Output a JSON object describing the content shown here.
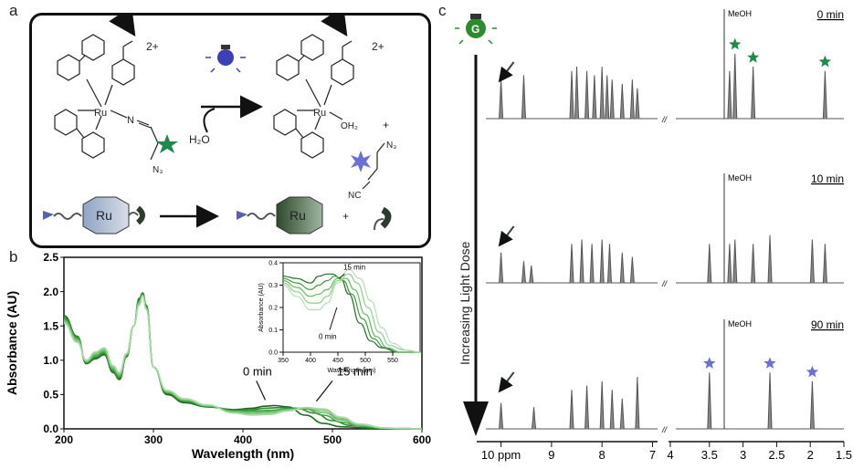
{
  "panel_labels": {
    "a": "a",
    "b": "b",
    "c": "c"
  },
  "scheme": {
    "metal": "Ru",
    "charge": "2+",
    "water": "H₂O",
    "aqua_ligand": "OH₂",
    "nitrogen": "N",
    "azide": "N₃",
    "nitrile": "NC",
    "plus": "+",
    "cartoon_label": "Ru",
    "colors": {
      "green_star": "#1f8a4c",
      "blue_star": "#6b6fd6",
      "bulb": "#3b3fb8"
    }
  },
  "chart_data": [
    {
      "type": "line",
      "xlabel": "Wavelength (nm)",
      "ylabel": "Absorbance (AU)",
      "xlim": [
        200,
        600
      ],
      "ylim": [
        0,
        2.5
      ],
      "x_ticks": [
        "200",
        "300",
        "400",
        "500",
        "600"
      ],
      "y_ticks": [
        "0.0",
        "0.5",
        "1.0",
        "1.5",
        "2.0",
        "2.5"
      ],
      "annotations": [
        "0 min",
        "15 min"
      ],
      "grid": false,
      "series": [
        {
          "x": [
            200,
            215,
            225,
            235,
            245,
            255,
            262,
            270,
            278,
            284,
            288,
            292,
            300,
            315,
            335,
            360,
            390,
            410,
            425,
            435,
            450,
            470,
            490,
            510,
            540,
            600
          ],
          "y": [
            1.65,
            1.35,
            0.95,
            1.02,
            1.08,
            0.82,
            0.72,
            1.05,
            1.5,
            1.9,
            1.98,
            1.8,
            0.9,
            0.5,
            0.38,
            0.32,
            0.28,
            0.3,
            0.33,
            0.34,
            0.32,
            0.2,
            0.08,
            0.03,
            0.01,
            0.0
          ],
          "color": "#1e6b1e"
        },
        {
          "x": [
            200,
            215,
            225,
            235,
            245,
            255,
            262,
            270,
            278,
            284,
            288,
            292,
            300,
            315,
            335,
            360,
            390,
            410,
            425,
            440,
            460,
            480,
            500,
            520,
            550,
            600
          ],
          "y": [
            1.62,
            1.34,
            0.96,
            1.04,
            1.1,
            0.84,
            0.74,
            1.06,
            1.5,
            1.88,
            1.97,
            1.78,
            0.9,
            0.52,
            0.4,
            0.33,
            0.27,
            0.28,
            0.3,
            0.31,
            0.3,
            0.23,
            0.12,
            0.05,
            0.01,
            0.0
          ],
          "color": "#2f8a2f"
        },
        {
          "x": [
            200,
            215,
            225,
            235,
            245,
            255,
            262,
            270,
            278,
            284,
            288,
            292,
            300,
            315,
            335,
            360,
            390,
            410,
            430,
            450,
            470,
            490,
            510,
            530,
            560,
            600
          ],
          "y": [
            1.6,
            1.32,
            0.97,
            1.06,
            1.12,
            0.86,
            0.76,
            1.07,
            1.5,
            1.86,
            1.96,
            1.77,
            0.9,
            0.53,
            0.41,
            0.33,
            0.26,
            0.26,
            0.27,
            0.29,
            0.29,
            0.2,
            0.1,
            0.04,
            0.01,
            0.0
          ],
          "color": "#47a347"
        },
        {
          "x": [
            200,
            215,
            225,
            235,
            245,
            255,
            262,
            270,
            278,
            284,
            288,
            292,
            300,
            315,
            335,
            360,
            390,
            410,
            430,
            450,
            470,
            490,
            510,
            530,
            560,
            600
          ],
          "y": [
            1.58,
            1.3,
            0.98,
            1.08,
            1.14,
            0.88,
            0.78,
            1.08,
            1.5,
            1.84,
            1.95,
            1.76,
            0.9,
            0.54,
            0.42,
            0.34,
            0.25,
            0.24,
            0.25,
            0.28,
            0.3,
            0.24,
            0.13,
            0.05,
            0.01,
            0.0
          ],
          "color": "#64b864"
        },
        {
          "x": [
            200,
            215,
            225,
            235,
            245,
            255,
            262,
            270,
            278,
            284,
            288,
            292,
            300,
            315,
            335,
            360,
            390,
            410,
            430,
            450,
            470,
            490,
            510,
            530,
            560,
            600
          ],
          "y": [
            1.56,
            1.28,
            0.99,
            1.1,
            1.16,
            0.9,
            0.8,
            1.09,
            1.5,
            1.82,
            1.94,
            1.75,
            0.9,
            0.55,
            0.43,
            0.34,
            0.24,
            0.22,
            0.23,
            0.27,
            0.31,
            0.27,
            0.15,
            0.06,
            0.01,
            0.0
          ],
          "color": "#86c986"
        },
        {
          "x": [
            200,
            215,
            225,
            235,
            245,
            255,
            262,
            270,
            278,
            284,
            288,
            292,
            300,
            315,
            335,
            360,
            390,
            410,
            430,
            450,
            470,
            490,
            510,
            530,
            560,
            600
          ],
          "y": [
            1.54,
            1.26,
            1.0,
            1.12,
            1.18,
            0.92,
            0.82,
            1.1,
            1.5,
            1.8,
            1.93,
            1.74,
            0.9,
            0.56,
            0.44,
            0.35,
            0.23,
            0.2,
            0.21,
            0.26,
            0.31,
            0.29,
            0.17,
            0.07,
            0.01,
            0.0
          ],
          "color": "#a8d9a8"
        }
      ]
    },
    {
      "type": "line",
      "xlabel": "Wavelength (nm)",
      "ylabel": "Absorbance (AU)",
      "xlim": [
        350,
        600
      ],
      "ylim": [
        0,
        0.4
      ],
      "x_ticks": [
        "350",
        "400",
        "450",
        "500",
        "550"
      ],
      "y_ticks": [
        "0.0",
        "0.1",
        "0.2",
        "0.3",
        "0.4"
      ],
      "annotations": [
        "0 min",
        "15 min"
      ],
      "grid": false,
      "series": [
        {
          "x": [
            350,
            375,
            400,
            415,
            430,
            440,
            455,
            470,
            490,
            510,
            530,
            560,
            600
          ],
          "y": [
            0.34,
            0.33,
            0.31,
            0.34,
            0.35,
            0.35,
            0.33,
            0.26,
            0.13,
            0.05,
            0.02,
            0.0,
            0.0
          ],
          "color": "#1e6b1e"
        },
        {
          "x": [
            350,
            375,
            400,
            415,
            430,
            445,
            460,
            475,
            495,
            515,
            535,
            560,
            600
          ],
          "y": [
            0.33,
            0.31,
            0.28,
            0.3,
            0.32,
            0.34,
            0.32,
            0.26,
            0.15,
            0.06,
            0.02,
            0.0,
            0.0
          ],
          "color": "#3c9a3c"
        },
        {
          "x": [
            350,
            375,
            400,
            415,
            430,
            450,
            465,
            480,
            500,
            520,
            540,
            565,
            600
          ],
          "y": [
            0.32,
            0.29,
            0.25,
            0.26,
            0.28,
            0.33,
            0.33,
            0.28,
            0.17,
            0.07,
            0.02,
            0.0,
            0.0
          ],
          "color": "#64b864"
        },
        {
          "x": [
            350,
            375,
            400,
            415,
            430,
            450,
            470,
            485,
            505,
            525,
            545,
            570,
            600
          ],
          "y": [
            0.31,
            0.27,
            0.22,
            0.22,
            0.25,
            0.32,
            0.35,
            0.31,
            0.2,
            0.09,
            0.03,
            0.01,
            0.0
          ],
          "color": "#8fcd8f"
        },
        {
          "x": [
            350,
            375,
            400,
            415,
            430,
            450,
            470,
            490,
            510,
            530,
            550,
            575,
            600
          ],
          "y": [
            0.3,
            0.25,
            0.19,
            0.19,
            0.22,
            0.31,
            0.37,
            0.33,
            0.23,
            0.11,
            0.04,
            0.01,
            0.0
          ],
          "color": "#b5deb5"
        }
      ]
    },
    {
      "type": "line",
      "xlabel": "",
      "ylabel": "",
      "x_ticks": [
        "10 ppm",
        "9",
        "8",
        "7",
        "4",
        "3.5",
        "3",
        "2.5",
        "2",
        "1.5"
      ],
      "axis_break": "//",
      "solvent_label": "MeOH",
      "traces": [
        {
          "time": "0 min",
          "low_peaks": [
            [
              10.0,
              0.45
            ],
            [
              9.55,
              0.5
            ],
            [
              8.6,
              0.55
            ],
            [
              8.5,
              0.6
            ],
            [
              8.3,
              0.55
            ],
            [
              8.15,
              0.5
            ],
            [
              8.0,
              0.6
            ],
            [
              7.9,
              0.5
            ],
            [
              7.8,
              0.45
            ],
            [
              7.6,
              0.4
            ],
            [
              7.4,
              0.45
            ],
            [
              7.3,
              0.35
            ]
          ],
          "high_peaks": [
            [
              3.28,
              1.0
            ],
            [
              3.2,
              0.55
            ],
            [
              3.12,
              0.75
            ],
            [
              2.85,
              0.6
            ],
            [
              1.78,
              0.55
            ]
          ],
          "star_ppm": [
            3.12,
            2.85,
            1.78
          ],
          "star_color": "#1f8a4c"
        },
        {
          "time": "10 min",
          "low_peaks": [
            [
              10.0,
              0.35
            ],
            [
              9.55,
              0.25
            ],
            [
              9.4,
              0.2
            ],
            [
              8.6,
              0.45
            ],
            [
              8.4,
              0.5
            ],
            [
              8.2,
              0.45
            ],
            [
              8.0,
              0.5
            ],
            [
              7.85,
              0.45
            ],
            [
              7.6,
              0.35
            ],
            [
              7.4,
              0.3
            ]
          ],
          "high_peaks": [
            [
              3.5,
              0.45
            ],
            [
              3.28,
              1.0
            ],
            [
              3.2,
              0.45
            ],
            [
              3.12,
              0.5
            ],
            [
              2.85,
              0.45
            ],
            [
              2.6,
              0.55
            ],
            [
              1.97,
              0.5
            ],
            [
              1.78,
              0.45
            ]
          ],
          "star_ppm": [],
          "star_color": "#6b6fd6"
        },
        {
          "time": "90 min",
          "low_peaks": [
            [
              10.0,
              0.3
            ],
            [
              9.35,
              0.25
            ],
            [
              8.6,
              0.45
            ],
            [
              8.3,
              0.5
            ],
            [
              8.0,
              0.55
            ],
            [
              7.8,
              0.45
            ],
            [
              7.6,
              0.35
            ],
            [
              7.3,
              0.6
            ]
          ],
          "high_peaks": [
            [
              3.5,
              0.65
            ],
            [
              3.28,
              1.0
            ],
            [
              2.6,
              0.65
            ],
            [
              1.97,
              0.55
            ]
          ],
          "star_ppm": [
            3.5,
            2.6,
            1.97
          ],
          "star_color": "#6b6fd6"
        }
      ],
      "dose_label": "Increasing Light Dose",
      "bulb_label": "G"
    }
  ]
}
